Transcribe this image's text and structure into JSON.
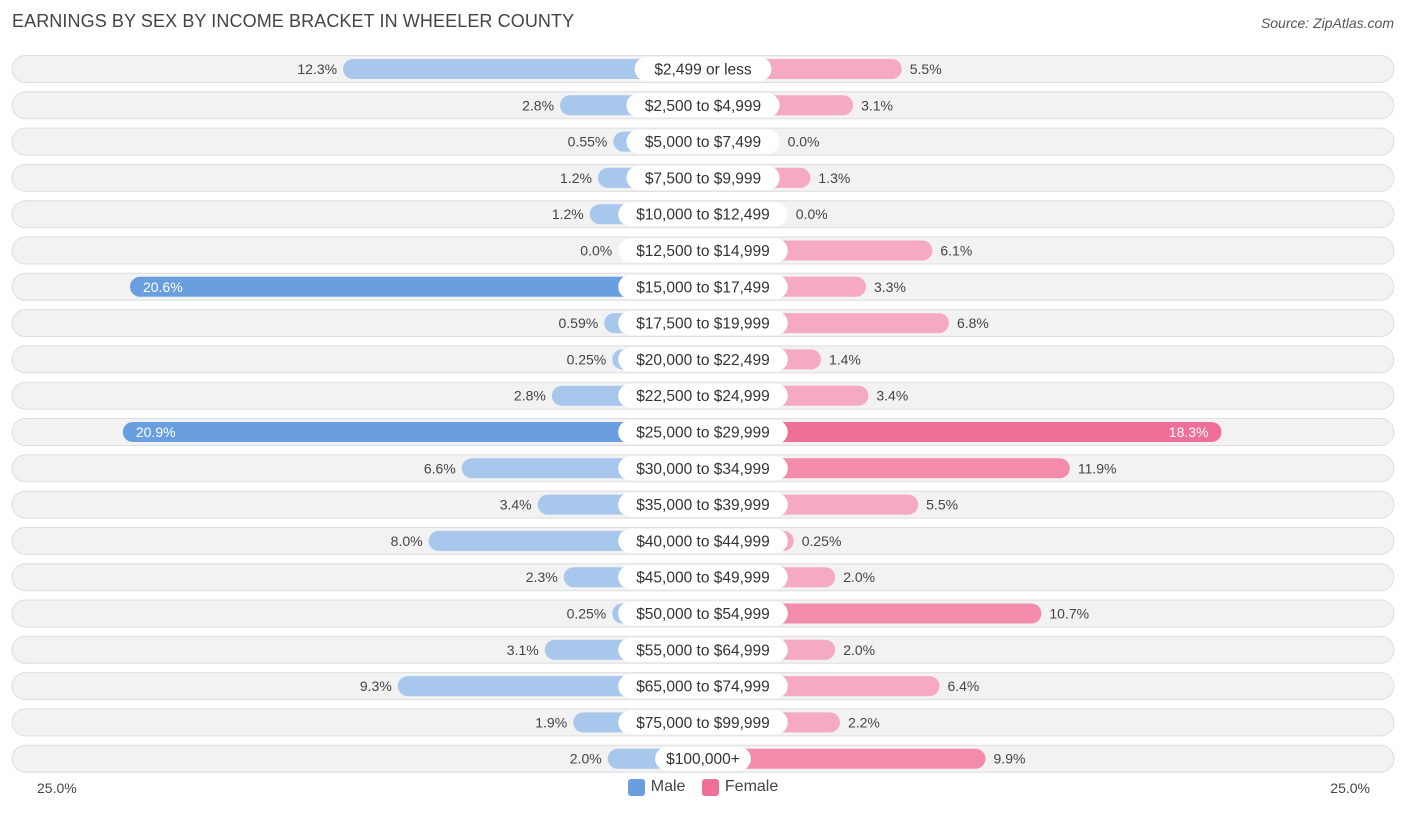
{
  "title": "EARNINGS BY SEX BY INCOME BRACKET IN WHEELER COUNTY",
  "source": "Source: ZipAtlas.com",
  "axis": {
    "left_label": "25.0%",
    "right_label": "25.0%"
  },
  "legend": {
    "male": "Male",
    "female": "Female"
  },
  "colors": {
    "male_strong": "#6a9fdf",
    "male_light": "#a7c7ec",
    "female_strong": "#f06f97",
    "female_light": "#f6a9c2",
    "row_bg": "#f2f2f2",
    "row_border": "#dedede"
  },
  "chart_data": {
    "type": "bar",
    "orientation": "horizontal-diverging",
    "title": "EARNINGS BY SEX BY INCOME BRACKET IN WHEELER COUNTY",
    "xlim": [
      0,
      25
    ],
    "unit": "%",
    "categories": [
      "$2,499 or less",
      "$2,500 to $4,999",
      "$5,000 to $7,499",
      "$7,500 to $9,999",
      "$10,000 to $12,499",
      "$12,500 to $14,999",
      "$15,000 to $17,499",
      "$17,500 to $19,999",
      "$20,000 to $22,499",
      "$22,500 to $24,999",
      "$25,000 to $29,999",
      "$30,000 to $34,999",
      "$35,000 to $39,999",
      "$40,000 to $44,999",
      "$45,000 to $49,999",
      "$50,000 to $54,999",
      "$55,000 to $64,999",
      "$65,000 to $74,999",
      "$75,000 to $99,999",
      "$100,000+"
    ],
    "series": [
      {
        "name": "Male",
        "values": [
          12.3,
          2.8,
          0.55,
          1.2,
          1.2,
          0.0,
          20.6,
          0.59,
          0.25,
          2.8,
          20.9,
          6.6,
          3.4,
          8.0,
          2.3,
          0.25,
          3.1,
          9.3,
          1.9,
          2.0
        ],
        "labels": [
          "12.3%",
          "2.8%",
          "0.55%",
          "1.2%",
          "1.2%",
          "0.0%",
          "20.6%",
          "0.59%",
          "0.25%",
          "2.8%",
          "20.9%",
          "6.6%",
          "3.4%",
          "8.0%",
          "2.3%",
          "0.25%",
          "3.1%",
          "9.3%",
          "1.9%",
          "2.0%"
        ]
      },
      {
        "name": "Female",
        "values": [
          5.5,
          3.1,
          0.0,
          1.3,
          0.0,
          6.1,
          3.3,
          6.8,
          1.4,
          3.4,
          18.3,
          11.9,
          5.5,
          0.25,
          2.0,
          10.7,
          2.0,
          6.4,
          2.2,
          9.9
        ],
        "labels": [
          "5.5%",
          "3.1%",
          "0.0%",
          "1.3%",
          "0.0%",
          "6.1%",
          "3.3%",
          "6.8%",
          "1.4%",
          "3.4%",
          "18.3%",
          "11.9%",
          "5.5%",
          "0.25%",
          "2.0%",
          "10.7%",
          "2.0%",
          "6.4%",
          "2.2%",
          "9.9%"
        ]
      }
    ]
  }
}
